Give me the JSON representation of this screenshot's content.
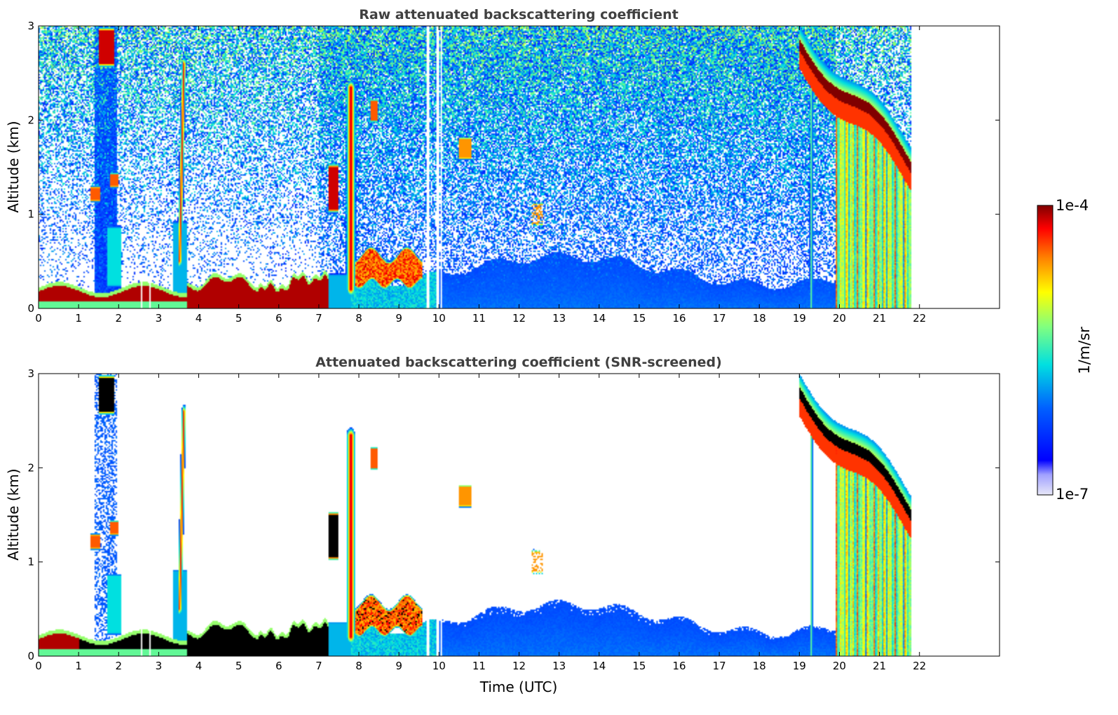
{
  "chart_data": [
    {
      "type": "heatmap",
      "title": "Raw attenuated backscattering coefficient",
      "xlabel": "",
      "ylabel": "Altitude (km)",
      "xlim": [
        0,
        24
      ],
      "ylim": [
        0,
        3
      ],
      "x_ticks": [
        0,
        1,
        2,
        3,
        4,
        5,
        6,
        7,
        8,
        9,
        10,
        11,
        12,
        13,
        14,
        15,
        16,
        17,
        18,
        19,
        20,
        21,
        22
      ],
      "y_ticks": [
        0,
        1,
        2,
        3
      ],
      "data_end_time": 21.8,
      "features": [
        {
          "name": "boundary-layer",
          "t": [
            0,
            7.2
          ],
          "alt": [
            0.0,
            0.3
          ],
          "level": 0.95
        },
        {
          "name": "cloud-1.7h",
          "t": [
            1.5,
            1.9
          ],
          "alt": [
            2.5,
            3.0
          ],
          "level": 0.95
        },
        {
          "name": "cloud-1.2h",
          "t": [
            1.3,
            1.6
          ],
          "alt": [
            1.1,
            1.3
          ],
          "level": 0.85
        },
        {
          "name": "cloud-3.4h",
          "t": [
            3.3,
            3.6
          ],
          "alt": [
            0.4,
            2.6
          ],
          "level": 0.9
        },
        {
          "name": "cloud-7.5h",
          "t": [
            7.2,
            7.9
          ],
          "alt": [
            1.0,
            2.3
          ],
          "level": 0.95
        },
        {
          "name": "layer-8-9.5h",
          "t": [
            7.8,
            9.6
          ],
          "alt": [
            0.3,
            0.6
          ],
          "level": 0.9
        },
        {
          "name": "cloud-10.6h",
          "t": [
            10.5,
            10.8
          ],
          "alt": [
            1.6,
            1.8
          ],
          "level": 0.8
        },
        {
          "name": "aerosol-11-20h",
          "t": [
            10.0,
            19.9
          ],
          "alt": [
            0.0,
            0.55
          ],
          "level": 0.3
        },
        {
          "name": "descending-cloud",
          "t": [
            19.0,
            21.8
          ],
          "alt_start": 2.8,
          "alt_end": 1.45,
          "level": 1.0
        },
        {
          "name": "precipitation-20-21.8h",
          "t": [
            19.9,
            21.8
          ],
          "alt": [
            0.0,
            2.3
          ],
          "level": 0.6
        }
      ]
    },
    {
      "type": "heatmap",
      "title": "Attenuated backscattering coefficient (SNR-screened)",
      "xlabel": "Time (UTC)",
      "ylabel": "Altitude (km)",
      "xlim": [
        0,
        24
      ],
      "ylim": [
        0,
        3
      ],
      "x_ticks": [
        0,
        1,
        2,
        3,
        4,
        5,
        6,
        7,
        8,
        9,
        10,
        11,
        12,
        13,
        14,
        15,
        16,
        17,
        18,
        19,
        20,
        21,
        22
      ],
      "y_ticks": [
        0,
        1,
        2,
        3
      ],
      "data_end_time": 21.8,
      "screened": true
    }
  ],
  "colorbar": {
    "label": "1/m/sr",
    "min_label": "1e-7",
    "max_label": "1e-4",
    "scale": "log",
    "colormap": "jet"
  }
}
